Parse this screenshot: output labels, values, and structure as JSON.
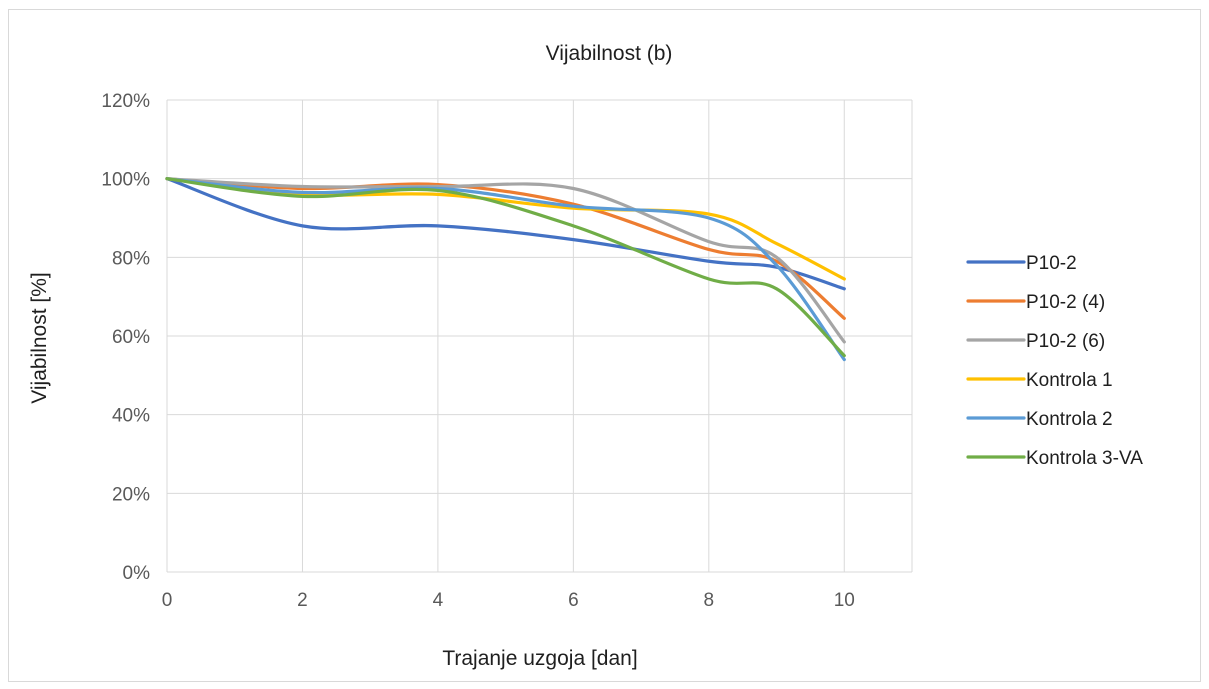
{
  "chart_data": {
    "type": "line",
    "title": "Vijabilnost (b)",
    "xlabel": "Trajanje uzgoja [dan]",
    "ylabel": "Vijabilnost [%]",
    "x": [
      0,
      2,
      4,
      6,
      8,
      9,
      10
    ],
    "xlim": [
      0,
      11
    ],
    "ylim": [
      0,
      1.2
    ],
    "x_ticks": [
      0,
      2,
      4,
      6,
      8,
      10
    ],
    "x_tick_labels": [
      "0",
      "2",
      "4",
      "6",
      "8",
      "10"
    ],
    "y_ticks": [
      0,
      0.2,
      0.4,
      0.6,
      0.8,
      1.0,
      1.2
    ],
    "y_tick_labels": [
      "0%",
      "20%",
      "40%",
      "60%",
      "80%",
      "100%",
      "120%"
    ],
    "grid": true,
    "legend_position": "right",
    "smooth": true,
    "series": [
      {
        "name": "P10-2",
        "color": "#4472c4",
        "values": [
          1.0,
          0.88,
          0.88,
          0.845,
          0.79,
          0.775,
          0.72
        ]
      },
      {
        "name": "P10-2 (4)",
        "color": "#ed7d31",
        "values": [
          1.0,
          0.975,
          0.985,
          0.935,
          0.82,
          0.79,
          0.645
        ]
      },
      {
        "name": "P10-2 (6)",
        "color": "#a5a5a5",
        "values": [
          1.0,
          0.98,
          0.98,
          0.975,
          0.84,
          0.8,
          0.585
        ]
      },
      {
        "name": "Kontrola 1",
        "color": "#ffc000",
        "values": [
          1.0,
          0.96,
          0.96,
          0.925,
          0.91,
          0.835,
          0.745
        ]
      },
      {
        "name": "Kontrola 2",
        "color": "#5b9bd5",
        "values": [
          1.0,
          0.965,
          0.975,
          0.93,
          0.9,
          0.78,
          0.54
        ]
      },
      {
        "name": "Kontrola 3-VA",
        "color": "#70ad47",
        "values": [
          1.0,
          0.955,
          0.97,
          0.88,
          0.745,
          0.72,
          0.55
        ]
      }
    ]
  }
}
